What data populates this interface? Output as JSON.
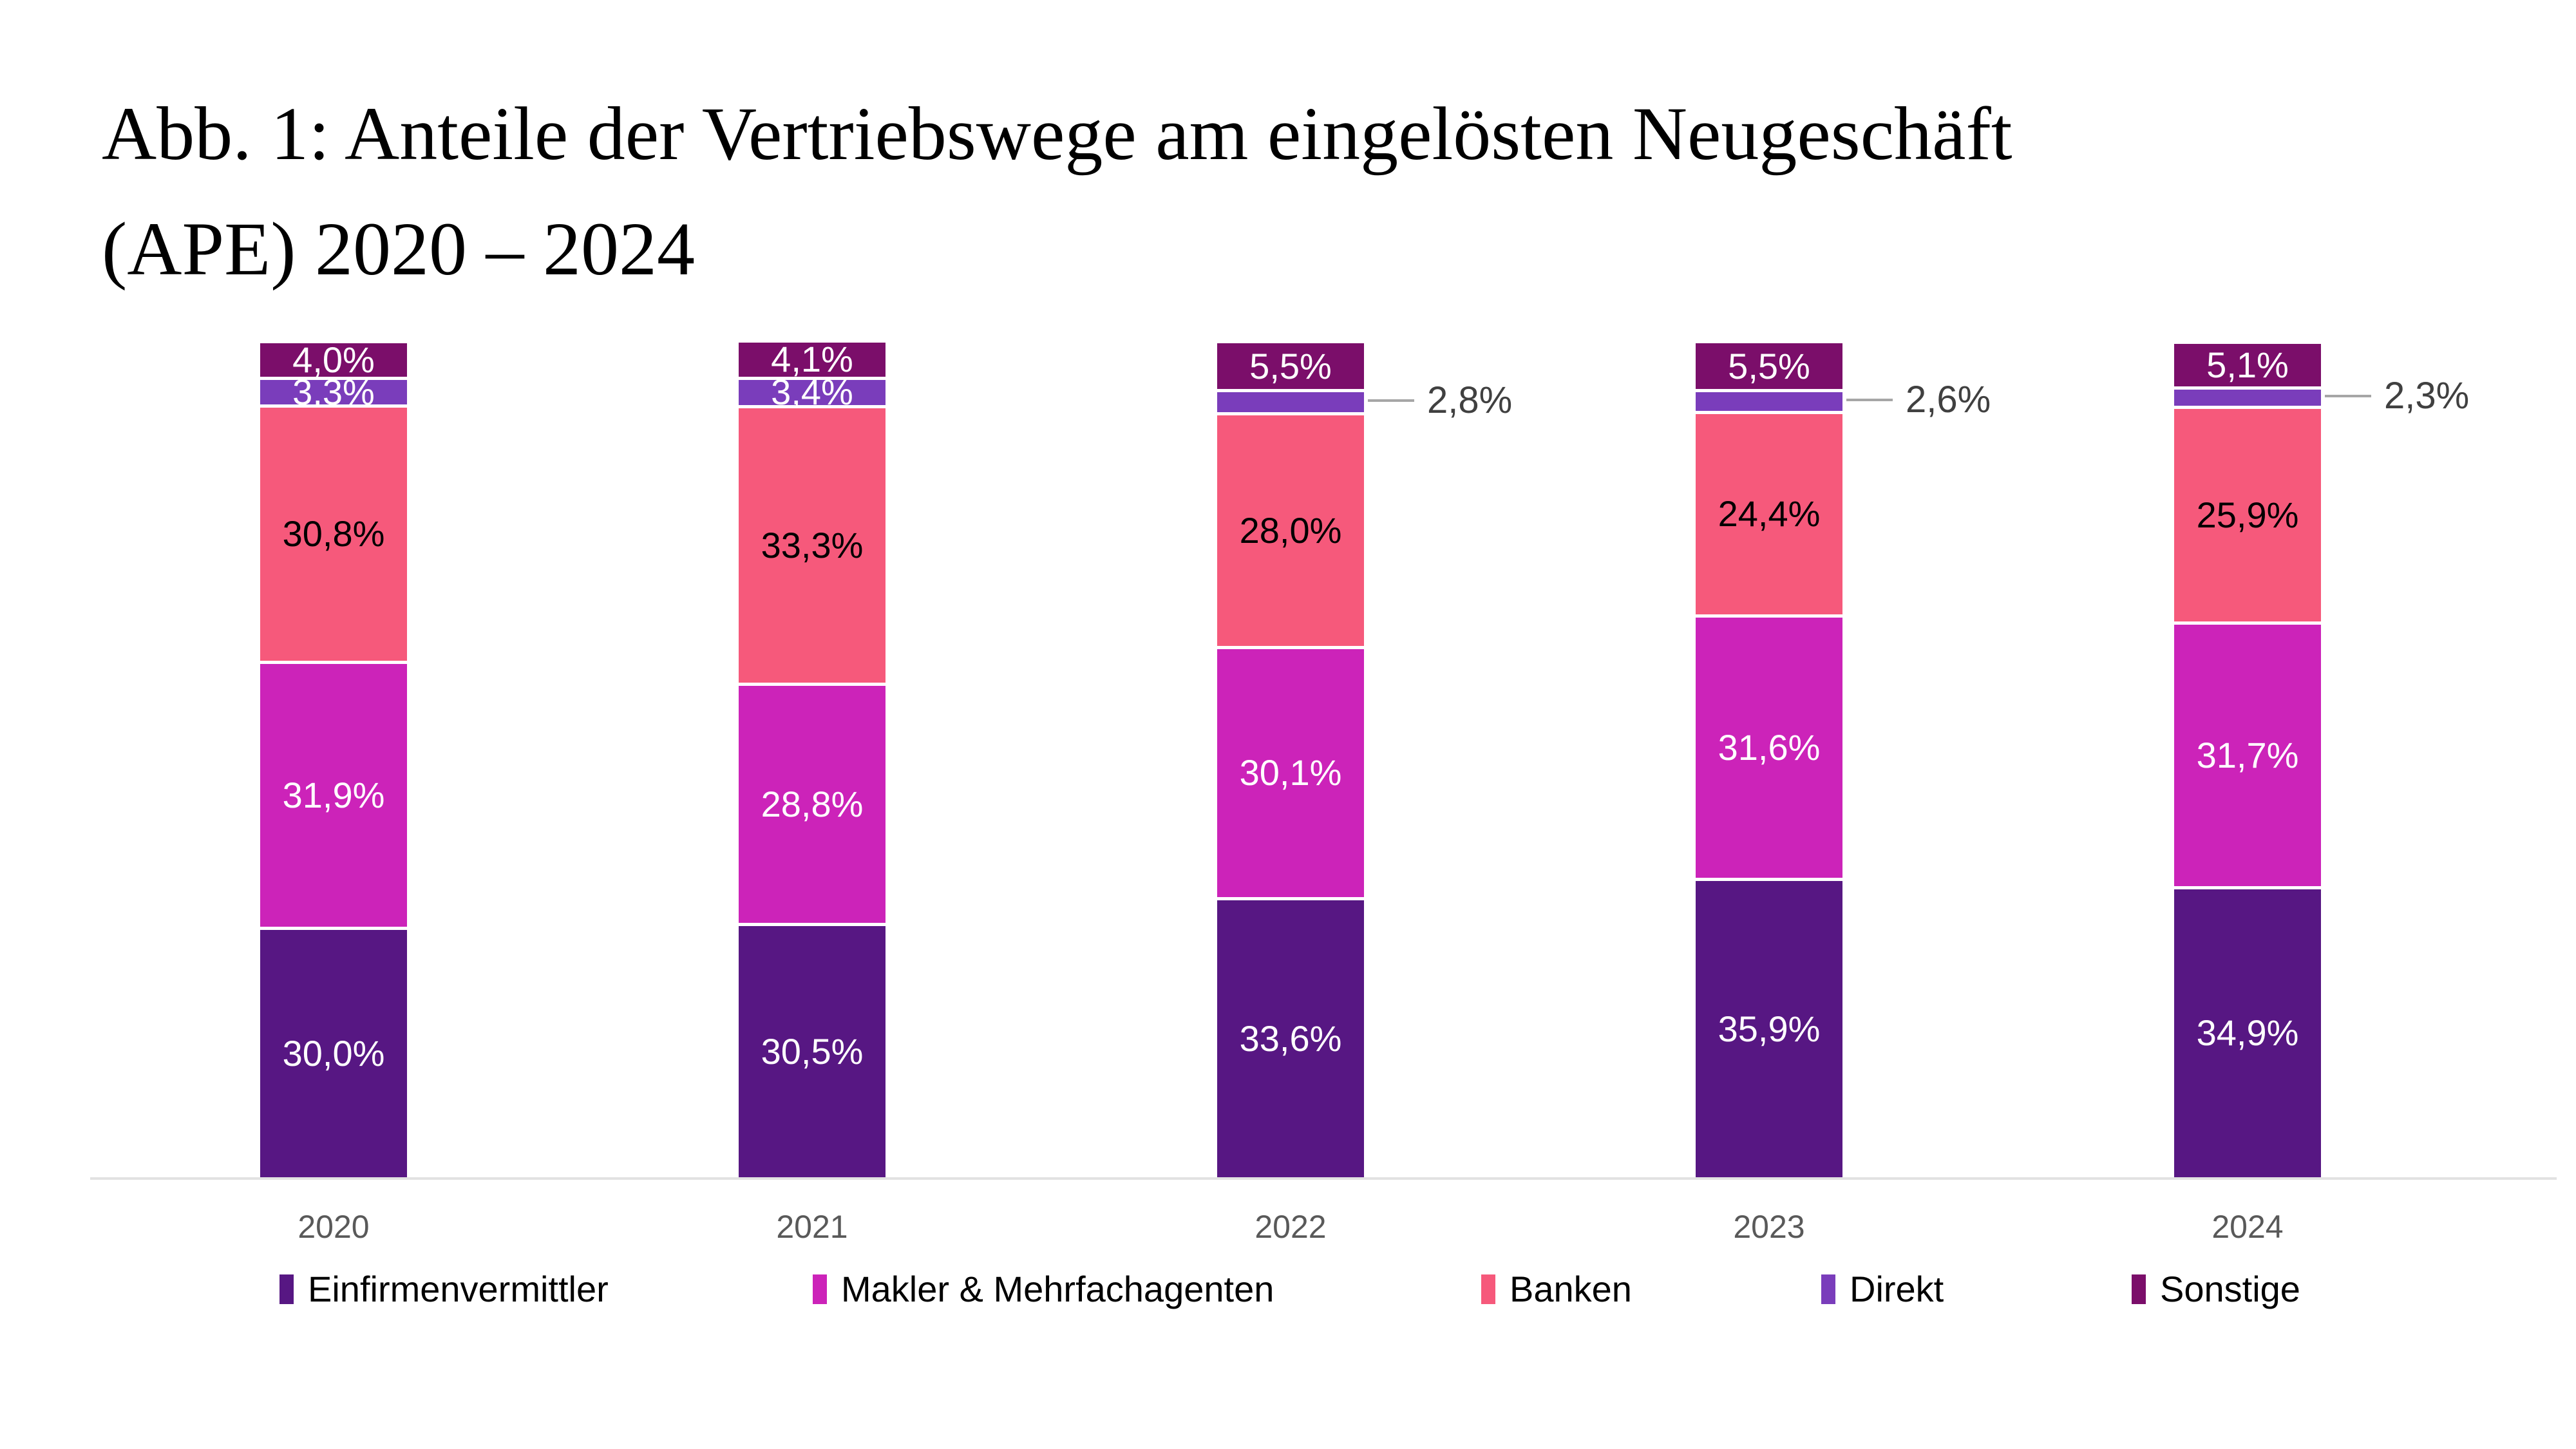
{
  "title": {
    "line1": "Abb. 1: Anteile der Vertriebswege am eingelösten Neugeschäft",
    "line2": "(APE) 2020 – 2024"
  },
  "chart_data": {
    "type": "bar",
    "subtype": "stacked-percent",
    "title": "Abb. 1: Anteile der Vertriebswege am eingelösten Neugeschäft (APE) 2020 – 2024",
    "categories": [
      "2020",
      "2021",
      "2022",
      "2023",
      "2024"
    ],
    "ylim": [
      0,
      100
    ],
    "grid": false,
    "legend_position": "bottom",
    "series": [
      {
        "name": "Einfirmenvermittler",
        "color": "#571783",
        "label_color": "#ffffff",
        "values": [
          30.0,
          30.5,
          33.6,
          35.9,
          34.9
        ],
        "labels": [
          "30,0%",
          "30,5%",
          "33,6%",
          "35,9%",
          "34,9%"
        ],
        "label_modes": [
          "inside",
          "inside",
          "inside",
          "inside",
          "inside"
        ]
      },
      {
        "name": "Makler & Mehrfachagenten",
        "color": "#cc23b9",
        "label_color": "#ffffff",
        "values": [
          31.9,
          28.8,
          30.1,
          31.6,
          31.7
        ],
        "labels": [
          "31,9%",
          "28,8%",
          "30,1%",
          "31,6%",
          "31,7%"
        ],
        "label_modes": [
          "inside",
          "inside",
          "inside",
          "inside",
          "inside"
        ]
      },
      {
        "name": "Banken",
        "color": "#f6597b",
        "label_color": "#000000",
        "values": [
          30.8,
          33.3,
          28.0,
          24.4,
          25.9
        ],
        "labels": [
          "30,8%",
          "33,3%",
          "28,0%",
          "24,4%",
          "25,9%"
        ],
        "label_modes": [
          "inside",
          "inside",
          "inside",
          "inside",
          "inside"
        ]
      },
      {
        "name": "Direkt",
        "color": "#7a3dbb",
        "label_color": "#ffffff",
        "values": [
          3.3,
          3.4,
          2.8,
          2.6,
          2.3
        ],
        "labels": [
          "3,3%",
          "3,4%",
          "2,8%",
          "2,6%",
          "2,3%"
        ],
        "label_modes": [
          "inside",
          "inside",
          "callout",
          "callout",
          "callout"
        ]
      },
      {
        "name": "Sonstige",
        "color": "#7b0e6a",
        "label_color": "#ffffff",
        "values": [
          4.0,
          4.1,
          5.5,
          5.5,
          5.1
        ],
        "labels": [
          "4,0%",
          "4,1%",
          "5,5%",
          "5,5%",
          "5,1%"
        ],
        "label_modes": [
          "inside",
          "inside",
          "inside",
          "inside",
          "inside"
        ]
      }
    ],
    "callout_line_color": "#a6a6a6",
    "callout_text_color": "#404040",
    "axis_line_color": "#e2e2e2",
    "year_label_color": "#595959"
  }
}
